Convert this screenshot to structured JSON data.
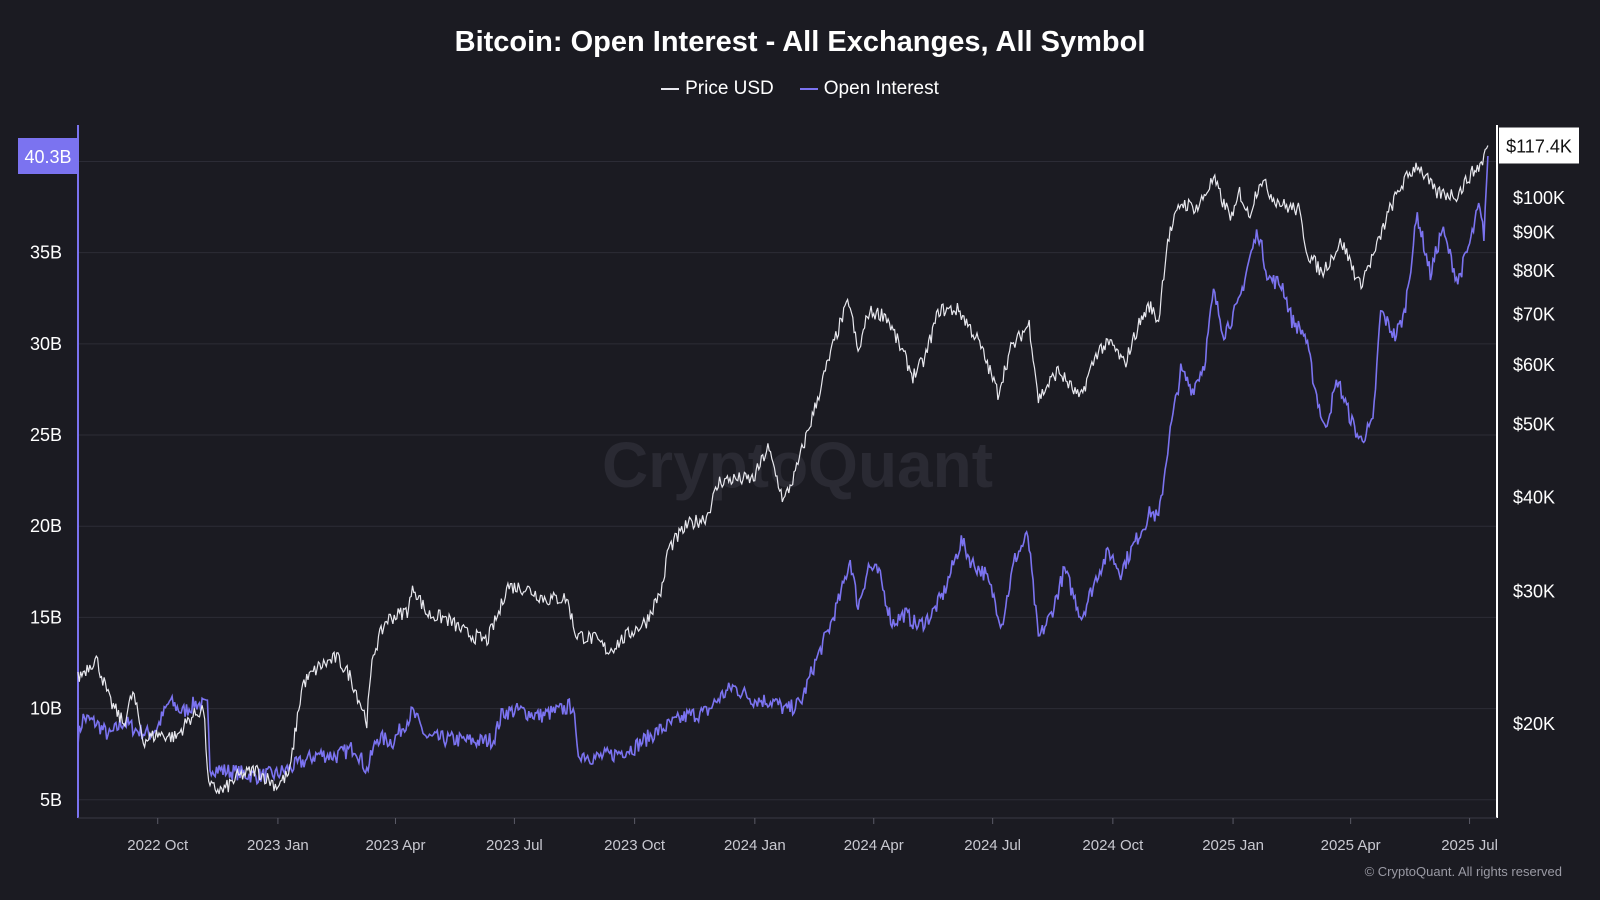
{
  "title": "Bitcoin: Open Interest - All Exchanges, All Symbol",
  "watermark": "CryptoQuant",
  "copyright": "© CryptoQuant. All rights reserved",
  "colors": {
    "background": "#1b1b22",
    "price": "#e8e8ee",
    "open_interest": "#7b73f0",
    "left_badge": "#7b73f0",
    "grid": "#2c2c36"
  },
  "chart_data": {
    "type": "line",
    "title": "Bitcoin: Open Interest - All Exchanges, All Symbol",
    "legend": [
      {
        "name": "Price USD",
        "color": "#e8e8ee"
      },
      {
        "name": "Open Interest",
        "color": "#7b73f0"
      }
    ],
    "legend_position": "top-center",
    "grid": true,
    "x_range": [
      "2022-08-01",
      "2025-07-22"
    ],
    "x_ticks": [
      {
        "date": "2022-10-01",
        "label": "2022 Oct"
      },
      {
        "date": "2023-01-01",
        "label": "2023 Jan"
      },
      {
        "date": "2023-04-01",
        "label": "2023 Apr"
      },
      {
        "date": "2023-07-01",
        "label": "2023 Jul"
      },
      {
        "date": "2023-10-01",
        "label": "2023 Oct"
      },
      {
        "date": "2024-01-01",
        "label": "2024 Jan"
      },
      {
        "date": "2024-04-01",
        "label": "2024 Apr"
      },
      {
        "date": "2024-07-01",
        "label": "2024 Jul"
      },
      {
        "date": "2024-10-01",
        "label": "2024 Oct"
      },
      {
        "date": "2025-01-01",
        "label": "2025 Jan"
      },
      {
        "date": "2025-04-01",
        "label": "2025 Apr"
      },
      {
        "date": "2025-07-01",
        "label": "2025 Jul"
      }
    ],
    "y_left": {
      "series": "Open Interest",
      "unit": "USD billions",
      "range": [
        4,
        42
      ],
      "ticks": [
        {
          "value": 5,
          "label": "5B"
        },
        {
          "value": 10,
          "label": "10B"
        },
        {
          "value": 15,
          "label": "15B"
        },
        {
          "value": 20,
          "label": "20B"
        },
        {
          "value": 25,
          "label": "25B"
        },
        {
          "value": 30,
          "label": "30B"
        },
        {
          "value": 35,
          "label": "35B"
        }
      ],
      "last_value_label": "40.3B"
    },
    "y_right": {
      "series": "Price USD",
      "scale": "log",
      "range": [
        15000,
        125000
      ],
      "ticks": [
        {
          "value": 20000,
          "label": "$20K"
        },
        {
          "value": 30000,
          "label": "$30K"
        },
        {
          "value": 40000,
          "label": "$40K"
        },
        {
          "value": 50000,
          "label": "$50K"
        },
        {
          "value": 60000,
          "label": "$60K"
        },
        {
          "value": 70000,
          "label": "$70K"
        },
        {
          "value": 80000,
          "label": "$80K"
        },
        {
          "value": 90000,
          "label": "$90K"
        },
        {
          "value": 100000,
          "label": "$100K"
        }
      ],
      "last_value_label": "$117.4K"
    },
    "series": [
      {
        "name": "Price USD",
        "axis": "right",
        "points": [
          [
            "2022-08-01",
            23000
          ],
          [
            "2022-08-10",
            24000
          ],
          [
            "2022-08-15",
            24400
          ],
          [
            "2022-08-25",
            21500
          ],
          [
            "2022-09-05",
            20000
          ],
          [
            "2022-09-12",
            22000
          ],
          [
            "2022-09-20",
            19000
          ],
          [
            "2022-10-01",
            19400
          ],
          [
            "2022-10-15",
            19200
          ],
          [
            "2022-10-25",
            20300
          ],
          [
            "2022-11-05",
            21000
          ],
          [
            "2022-11-09",
            16500
          ],
          [
            "2022-11-20",
            16300
          ],
          [
            "2022-12-01",
            17000
          ],
          [
            "2022-12-15",
            17400
          ],
          [
            "2022-12-31",
            16550
          ],
          [
            "2023-01-10",
            17200
          ],
          [
            "2023-01-20",
            22600
          ],
          [
            "2023-02-01",
            23800
          ],
          [
            "2023-02-15",
            24500
          ],
          [
            "2023-02-25",
            23200
          ],
          [
            "2023-03-10",
            20200
          ],
          [
            "2023-03-15",
            24800
          ],
          [
            "2023-03-25",
            27500
          ],
          [
            "2023-04-10",
            28300
          ],
          [
            "2023-04-15",
            30400
          ],
          [
            "2023-04-25",
            28000
          ],
          [
            "2023-05-10",
            27600
          ],
          [
            "2023-05-25",
            26400
          ],
          [
            "2023-06-10",
            25800
          ],
          [
            "2023-06-20",
            28300
          ],
          [
            "2023-06-25",
            30500
          ],
          [
            "2023-07-10",
            30300
          ],
          [
            "2023-07-25",
            29300
          ],
          [
            "2023-08-10",
            29400
          ],
          [
            "2023-08-17",
            26300
          ],
          [
            "2023-09-01",
            25900
          ],
          [
            "2023-09-11",
            25000
          ],
          [
            "2023-09-25",
            26200
          ],
          [
            "2023-10-10",
            27400
          ],
          [
            "2023-10-23",
            30500
          ],
          [
            "2023-10-26",
            34000
          ],
          [
            "2023-11-10",
            36700
          ],
          [
            "2023-11-25",
            37700
          ],
          [
            "2023-12-05",
            42000
          ],
          [
            "2023-12-15",
            42300
          ],
          [
            "2023-12-31",
            42300
          ],
          [
            "2024-01-11",
            46500
          ],
          [
            "2024-01-23",
            39500
          ],
          [
            "2024-02-01",
            43000
          ],
          [
            "2024-02-15",
            51800
          ],
          [
            "2024-02-28",
            62000
          ],
          [
            "2024-03-05",
            67000
          ],
          [
            "2024-03-13",
            73000
          ],
          [
            "2024-03-20",
            62000
          ],
          [
            "2024-03-28",
            70500
          ],
          [
            "2024-04-10",
            70000
          ],
          [
            "2024-04-20",
            64000
          ],
          [
            "2024-05-01",
            58000
          ],
          [
            "2024-05-10",
            61000
          ],
          [
            "2024-05-21",
            71000
          ],
          [
            "2024-06-05",
            71000
          ],
          [
            "2024-06-20",
            64500
          ],
          [
            "2024-07-05",
            55000
          ],
          [
            "2024-07-15",
            63000
          ],
          [
            "2024-07-29",
            68000
          ],
          [
            "2024-08-05",
            54000
          ],
          [
            "2024-08-20",
            59000
          ],
          [
            "2024-09-06",
            54000
          ],
          [
            "2024-09-20",
            63000
          ],
          [
            "2024-09-30",
            64000
          ],
          [
            "2024-10-10",
            60000
          ],
          [
            "2024-10-21",
            68000
          ],
          [
            "2024-10-29",
            72000
          ],
          [
            "2024-11-05",
            68500
          ],
          [
            "2024-11-12",
            88000
          ],
          [
            "2024-11-22",
            98500
          ],
          [
            "2024-12-05",
            97000
          ],
          [
            "2024-12-17",
            106000
          ],
          [
            "2024-12-25",
            98000
          ],
          [
            "2025-01-01",
            94000
          ],
          [
            "2025-01-06",
            102000
          ],
          [
            "2025-01-13",
            94500
          ],
          [
            "2025-01-22",
            106000
          ],
          [
            "2025-02-01",
            100000
          ],
          [
            "2025-02-10",
            97500
          ],
          [
            "2025-02-20",
            96500
          ],
          [
            "2025-02-27",
            84500
          ],
          [
            "2025-03-10",
            79500
          ],
          [
            "2025-03-25",
            87500
          ],
          [
            "2025-04-08",
            76500
          ],
          [
            "2025-04-20",
            85000
          ],
          [
            "2025-05-01",
            96500
          ],
          [
            "2025-05-10",
            104000
          ],
          [
            "2025-05-22",
            111000
          ],
          [
            "2025-06-05",
            101500
          ],
          [
            "2025-06-22",
            101000
          ],
          [
            "2025-07-01",
            107000
          ],
          [
            "2025-07-10",
            111000
          ],
          [
            "2025-07-15",
            117400
          ]
        ]
      },
      {
        "name": "Open Interest",
        "axis": "left",
        "points": [
          [
            "2022-08-01",
            8.4
          ],
          [
            "2022-08-05",
            9.5
          ],
          [
            "2022-08-15",
            9.2
          ],
          [
            "2022-08-25",
            8.5
          ],
          [
            "2022-09-05",
            9.3
          ],
          [
            "2022-09-15",
            8.8
          ],
          [
            "2022-09-25",
            8.6
          ],
          [
            "2022-10-01",
            9.0
          ],
          [
            "2022-10-10",
            10.4
          ],
          [
            "2022-10-20",
            9.8
          ],
          [
            "2022-10-30",
            10.3
          ],
          [
            "2022-11-08",
            10.1
          ],
          [
            "2022-11-10",
            6.8
          ],
          [
            "2022-11-20",
            6.6
          ],
          [
            "2022-12-01",
            6.5
          ],
          [
            "2022-12-15",
            6.3
          ],
          [
            "2022-12-31",
            6.4
          ],
          [
            "2023-01-15",
            6.9
          ],
          [
            "2023-02-01",
            7.5
          ],
          [
            "2023-02-15",
            7.4
          ],
          [
            "2023-03-01",
            7.9
          ],
          [
            "2023-03-10",
            6.6
          ],
          [
            "2023-03-18",
            8.4
          ],
          [
            "2023-03-30",
            8.2
          ],
          [
            "2023-04-14",
            9.8
          ],
          [
            "2023-04-25",
            8.4
          ],
          [
            "2023-05-15",
            8.3
          ],
          [
            "2023-06-05",
            8.2
          ],
          [
            "2023-06-15",
            8.3
          ],
          [
            "2023-06-22",
            9.8
          ],
          [
            "2023-07-05",
            9.9
          ],
          [
            "2023-07-20",
            9.6
          ],
          [
            "2023-08-05",
            9.9
          ],
          [
            "2023-08-15",
            10.2
          ],
          [
            "2023-08-18",
            7.6
          ],
          [
            "2023-09-01",
            7.3
          ],
          [
            "2023-09-15",
            7.5
          ],
          [
            "2023-10-01",
            7.9
          ],
          [
            "2023-10-15",
            8.6
          ],
          [
            "2023-10-25",
            9.0
          ],
          [
            "2023-11-10",
            9.6
          ],
          [
            "2023-11-25",
            9.8
          ],
          [
            "2023-12-05",
            10.6
          ],
          [
            "2023-12-15",
            11.2
          ],
          [
            "2023-12-31",
            10.5
          ],
          [
            "2024-01-15",
            10.4
          ],
          [
            "2024-01-25",
            9.9
          ],
          [
            "2024-02-05",
            10.3
          ],
          [
            "2024-02-15",
            12.3
          ],
          [
            "2024-02-28",
            14.6
          ],
          [
            "2024-03-07",
            16.3
          ],
          [
            "2024-03-14",
            18.2
          ],
          [
            "2024-03-20",
            15.6
          ],
          [
            "2024-03-28",
            17.8
          ],
          [
            "2024-04-05",
            17.4
          ],
          [
            "2024-04-15",
            14.7
          ],
          [
            "2024-04-25",
            15.2
          ],
          [
            "2024-05-05",
            14.5
          ],
          [
            "2024-05-15",
            15.1
          ],
          [
            "2024-05-25",
            16.4
          ],
          [
            "2024-06-07",
            19.2
          ],
          [
            "2024-06-15",
            18.0
          ],
          [
            "2024-06-25",
            17.4
          ],
          [
            "2024-07-02",
            16.1
          ],
          [
            "2024-07-08",
            14.6
          ],
          [
            "2024-07-18",
            18.2
          ],
          [
            "2024-07-28",
            19.5
          ],
          [
            "2024-08-05",
            13.8
          ],
          [
            "2024-08-15",
            15.2
          ],
          [
            "2024-08-25",
            17.6
          ],
          [
            "2024-09-07",
            15.0
          ],
          [
            "2024-09-20",
            17.5
          ],
          [
            "2024-09-28",
            18.6
          ],
          [
            "2024-10-07",
            17.5
          ],
          [
            "2024-10-20",
            19.4
          ],
          [
            "2024-10-30",
            20.8
          ],
          [
            "2024-11-05",
            20.4
          ],
          [
            "2024-11-13",
            24.8
          ],
          [
            "2024-11-22",
            28.5
          ],
          [
            "2024-12-01",
            27.5
          ],
          [
            "2024-12-10",
            28.9
          ],
          [
            "2024-12-17",
            32.8
          ],
          [
            "2024-12-25",
            30.6
          ],
          [
            "2025-01-05",
            32.1
          ],
          [
            "2025-01-13",
            34.5
          ],
          [
            "2025-01-20",
            36.2
          ],
          [
            "2025-01-28",
            33.6
          ],
          [
            "2025-02-08",
            33.2
          ],
          [
            "2025-02-15",
            31.3
          ],
          [
            "2025-02-25",
            30.5
          ],
          [
            "2025-03-05",
            27.5
          ],
          [
            "2025-03-12",
            25.3
          ],
          [
            "2025-03-22",
            28.0
          ],
          [
            "2025-04-01",
            25.9
          ],
          [
            "2025-04-08",
            24.7
          ],
          [
            "2025-04-18",
            25.6
          ],
          [
            "2025-04-24",
            31.8
          ],
          [
            "2025-05-05",
            30.4
          ],
          [
            "2025-05-12",
            31.6
          ],
          [
            "2025-05-22",
            37.1
          ],
          [
            "2025-06-01",
            33.8
          ],
          [
            "2025-06-10",
            36.3
          ],
          [
            "2025-06-22",
            33.4
          ],
          [
            "2025-07-02",
            35.7
          ],
          [
            "2025-07-08",
            37.5
          ],
          [
            "2025-07-12",
            36.0
          ],
          [
            "2025-07-15",
            40.3
          ]
        ]
      }
    ]
  }
}
